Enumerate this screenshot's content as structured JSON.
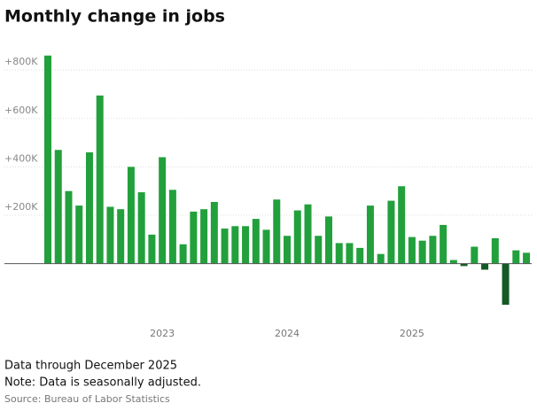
{
  "chart_data": {
    "type": "bar",
    "title": "Monthly change in jobs",
    "categories": [
      null,
      null,
      null,
      null,
      null,
      null,
      null,
      null,
      null,
      null,
      null,
      "2023",
      null,
      null,
      null,
      null,
      null,
      null,
      null,
      null,
      null,
      null,
      null,
      "2024",
      null,
      null,
      null,
      null,
      null,
      null,
      null,
      null,
      null,
      null,
      null,
      "2025",
      null,
      null,
      null,
      null,
      null,
      null,
      null,
      null,
      null,
      null,
      null
    ],
    "values": [
      860000,
      470000,
      300000,
      240000,
      460000,
      695000,
      235000,
      225000,
      400000,
      295000,
      120000,
      440000,
      305000,
      80000,
      215000,
      225000,
      255000,
      145000,
      155000,
      155000,
      185000,
      140000,
      265000,
      115000,
      220000,
      245000,
      115000,
      195000,
      85000,
      85000,
      65000,
      240000,
      40000,
      260000,
      320000,
      110000,
      95000,
      115000,
      160000,
      15000,
      -10000,
      70000,
      -25000,
      105000,
      -170000,
      55000,
      45000
    ],
    "color": "#22a03c",
    "negative_color": "#135a24",
    "ylim": [
      -210000,
      870000
    ],
    "yticks": [
      {
        "value": 200000,
        "label": "+200K"
      },
      {
        "value": 400000,
        "label": "+400K"
      },
      {
        "value": 600000,
        "label": "+600K"
      },
      {
        "value": 800000,
        "label": "+800K"
      }
    ],
    "grid": true,
    "notes": [
      "Data through December 2025",
      "Note: Data is seasonally adjusted."
    ],
    "source": "Source: Bureau of Labor Statistics"
  }
}
